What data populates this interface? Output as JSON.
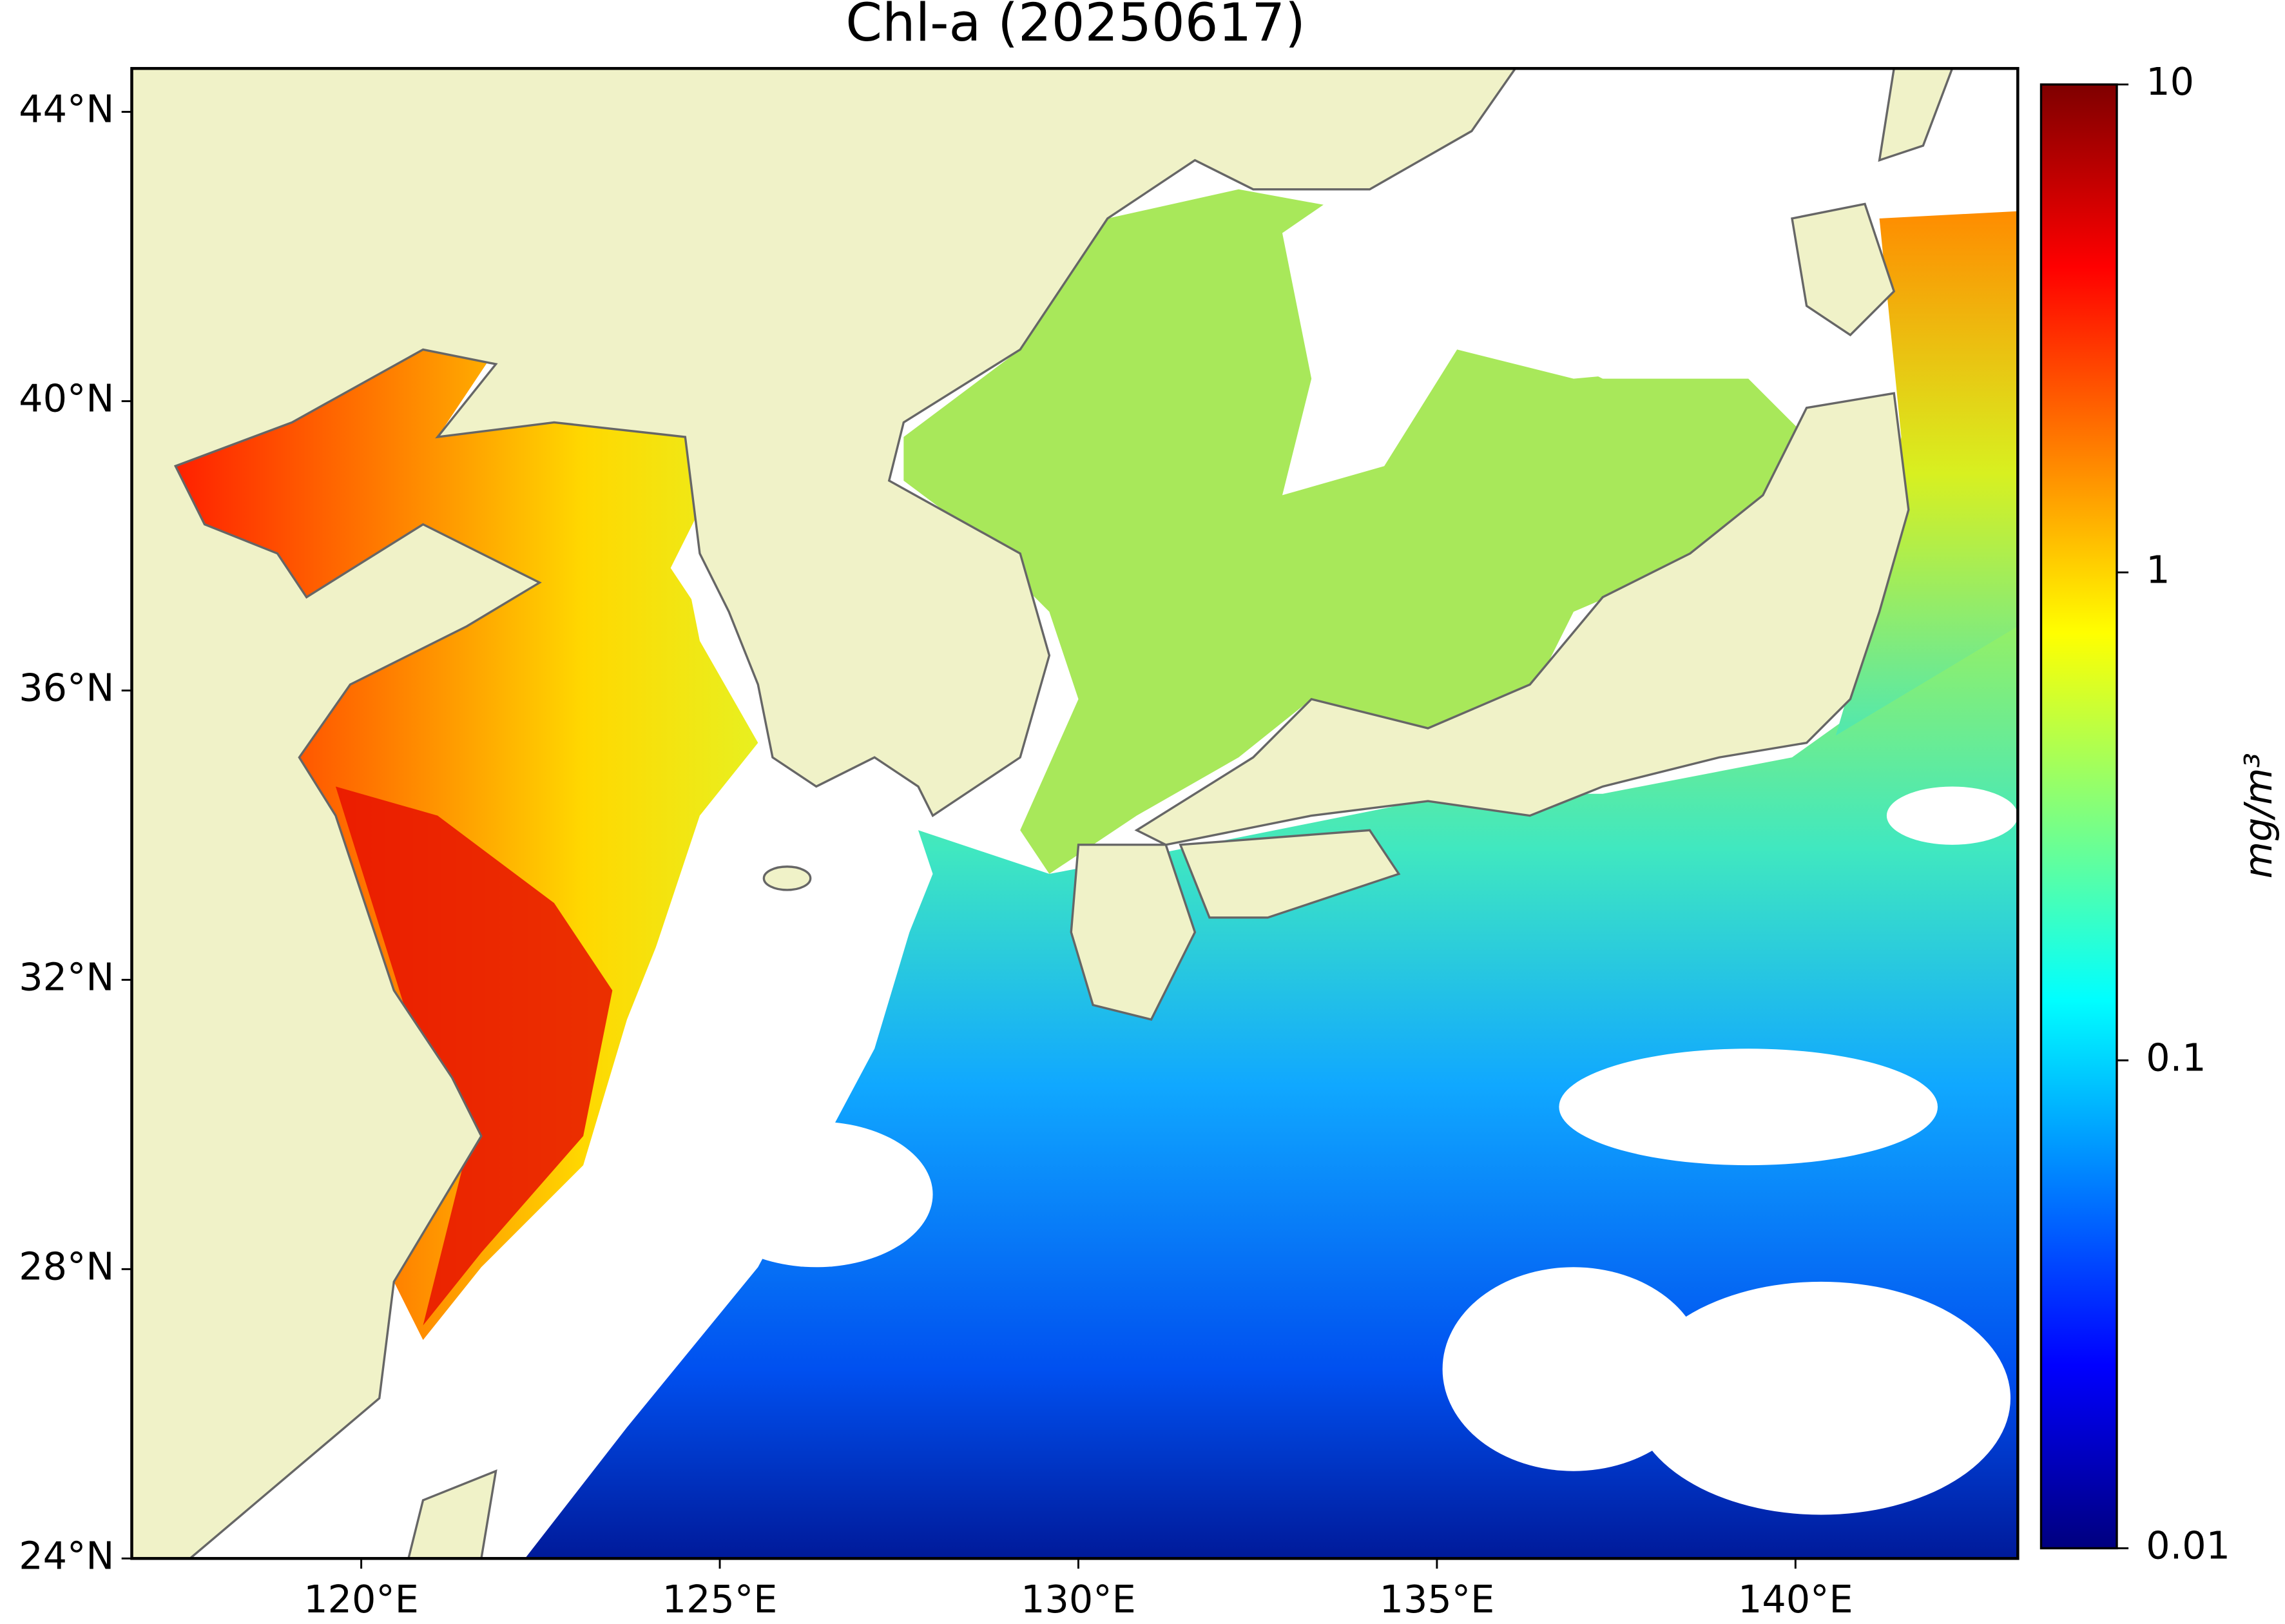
{
  "chart_data": {
    "type": "map",
    "title": "Chl-a (20250617)",
    "xlim": [
      116.8,
      143.1
    ],
    "ylim": [
      24,
      44.6
    ],
    "xticks": [
      {
        "value": 120,
        "label": "120°E"
      },
      {
        "value": 125,
        "label": "125°E"
      },
      {
        "value": 130,
        "label": "130°E"
      },
      {
        "value": 135,
        "label": "135°E"
      },
      {
        "value": 140,
        "label": "140°E"
      }
    ],
    "yticks": [
      {
        "value": 24,
        "label": "24°N"
      },
      {
        "value": 28,
        "label": "28°N"
      },
      {
        "value": 32,
        "label": "32°N"
      },
      {
        "value": 36,
        "label": "36°N"
      },
      {
        "value": 40,
        "label": "40°N"
      },
      {
        "value": 44,
        "label": "44°N"
      }
    ],
    "colorbar": {
      "label": "mg/m³",
      "scale": "log",
      "colormap": "jet",
      "lim": [
        0.01,
        10
      ],
      "ticks": [
        0.01,
        0.1,
        1,
        10
      ]
    }
  }
}
